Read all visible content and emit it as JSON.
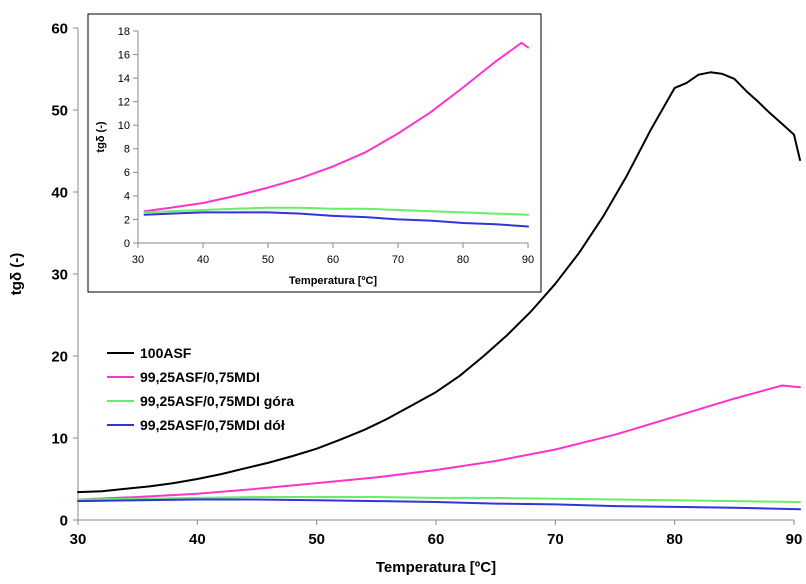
{
  "chart_data": [
    {
      "type": "line",
      "xlabel": "Temperatura [ºC]",
      "ylabel": "tgδ  (-)",
      "xlim": [
        30,
        90
      ],
      "ylim": [
        0,
        60
      ],
      "xticks": [
        30,
        40,
        50,
        60,
        70,
        80,
        90
      ],
      "yticks": [
        0,
        10,
        20,
        30,
        40,
        50,
        60
      ],
      "grid": false,
      "legend_position": "left",
      "series": [
        {
          "name": "100ASF",
          "color": "#000000",
          "x": [
            30,
            32,
            34,
            36,
            38,
            40,
            42,
            44,
            46,
            48,
            50,
            52,
            54,
            56,
            58,
            60,
            62,
            64,
            66,
            68,
            70,
            72,
            74,
            76,
            78,
            80,
            81,
            82,
            83,
            84,
            85,
            86,
            87,
            88,
            89,
            90,
            90.5
          ],
          "y": [
            3.4,
            3.5,
            3.8,
            4.1,
            4.5,
            5.0,
            5.6,
            6.3,
            7.0,
            7.8,
            8.7,
            9.8,
            11.0,
            12.4,
            14.0,
            15.6,
            17.6,
            20.0,
            22.6,
            25.5,
            28.8,
            32.6,
            37.0,
            42.0,
            47.6,
            52.7,
            53.3,
            54.3,
            54.6,
            54.4,
            53.8,
            52.3,
            51.0,
            49.6,
            48.3,
            47.0,
            43.9
          ]
        },
        {
          "name": "99,25ASF/0,75MDI",
          "color": "#ff33cc",
          "x": [
            30,
            35,
            40,
            45,
            50,
            55,
            60,
            65,
            70,
            75,
            80,
            85,
            89,
            90.5
          ],
          "y": [
            2.5,
            2.8,
            3.2,
            3.8,
            4.5,
            5.2,
            6.1,
            7.2,
            8.6,
            10.4,
            12.6,
            14.8,
            16.4,
            16.2
          ]
        },
        {
          "name": "99,25ASF/0,75MDI góra",
          "color": "#66ee66",
          "x": [
            30,
            35,
            40,
            45,
            50,
            55,
            60,
            65,
            70,
            75,
            80,
            85,
            90.5
          ],
          "y": [
            2.5,
            2.6,
            2.7,
            2.8,
            2.8,
            2.8,
            2.7,
            2.7,
            2.6,
            2.5,
            2.4,
            2.3,
            2.2
          ]
        },
        {
          "name": "99,25ASF/0,75MDI dół",
          "color": "#3333dd",
          "x": [
            30,
            35,
            40,
            45,
            50,
            55,
            60,
            65,
            70,
            75,
            80,
            85,
            90.5
          ],
          "y": [
            2.3,
            2.4,
            2.5,
            2.5,
            2.4,
            2.3,
            2.2,
            2.0,
            1.9,
            1.7,
            1.6,
            1.5,
            1.3
          ]
        }
      ]
    },
    {
      "type": "line",
      "xlabel": "Temperatura [ºC]",
      "ylabel": "tgδ  (-)",
      "xlim": [
        30,
        90
      ],
      "ylim": [
        0,
        18
      ],
      "xticks": [
        30,
        40,
        50,
        60,
        70,
        80,
        90
      ],
      "yticks": [
        0,
        2,
        4,
        6,
        8,
        10,
        12,
        14,
        16,
        18
      ],
      "grid": false,
      "series": [
        {
          "color": "#ff33cc",
          "x": [
            31,
            35,
            40,
            45,
            50,
            55,
            60,
            65,
            70,
            75,
            80,
            85,
            88,
            89,
            90
          ],
          "y": [
            2.7,
            3.0,
            3.4,
            4.0,
            4.7,
            5.5,
            6.5,
            7.7,
            9.3,
            11.1,
            13.2,
            15.4,
            16.6,
            17.0,
            16.6
          ]
        },
        {
          "color": "#66ee66",
          "x": [
            31,
            35,
            40,
            45,
            50,
            55,
            60,
            65,
            70,
            75,
            80,
            85,
            90
          ],
          "y": [
            2.6,
            2.7,
            2.8,
            2.9,
            3.0,
            3.0,
            2.9,
            2.9,
            2.8,
            2.7,
            2.6,
            2.5,
            2.4
          ]
        },
        {
          "color": "#3333dd",
          "x": [
            31,
            35,
            40,
            45,
            50,
            55,
            60,
            65,
            70,
            75,
            80,
            85,
            90
          ],
          "y": [
            2.4,
            2.5,
            2.6,
            2.6,
            2.6,
            2.5,
            2.3,
            2.2,
            2.0,
            1.9,
            1.7,
            1.6,
            1.4
          ]
        }
      ]
    }
  ]
}
